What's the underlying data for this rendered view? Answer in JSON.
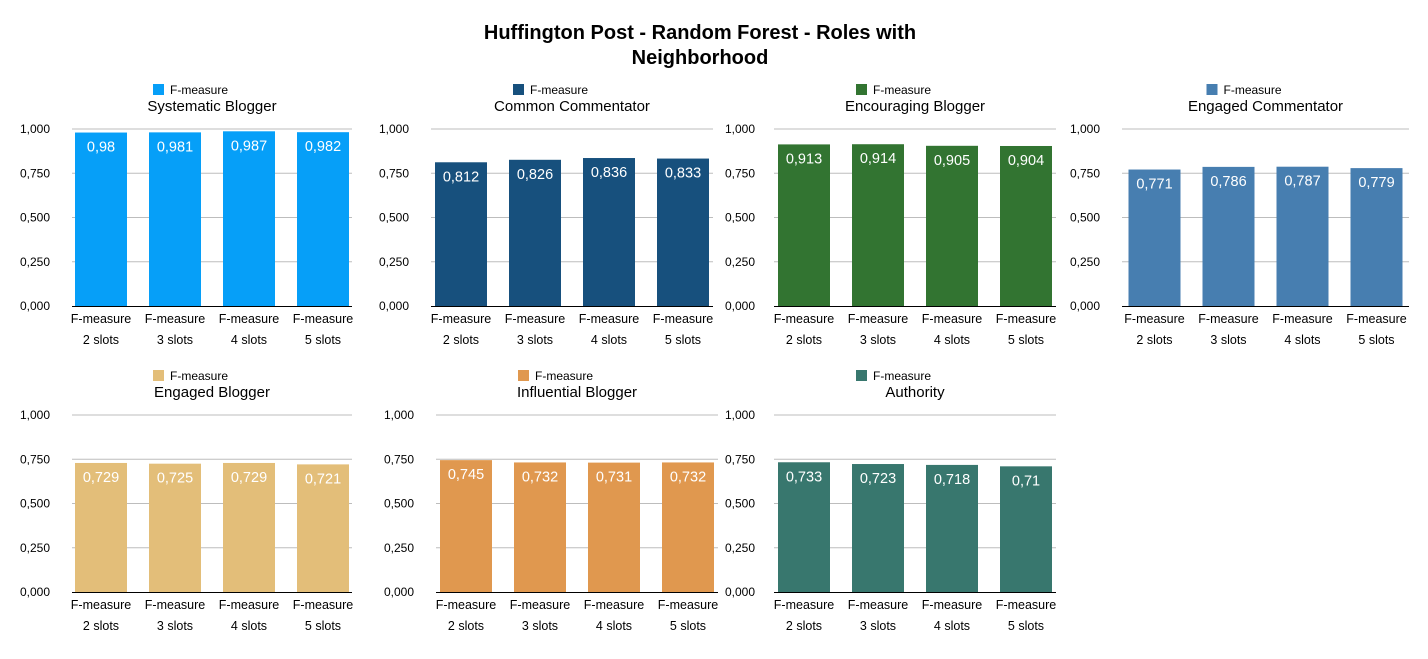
{
  "figure_title_lines": [
    "Huffington Post - Random Forest - Roles with",
    "Neighborhood"
  ],
  "chart_data": [
    {
      "type": "bar",
      "title": "Systematic Blogger",
      "legend": "F-measure",
      "color": "#069ff8",
      "categories": [
        [
          "F-measure",
          "2 slots"
        ],
        [
          "F-measure",
          "3 slots"
        ],
        [
          "F-measure",
          "4 slots"
        ],
        [
          "F-measure",
          "5 slots"
        ]
      ],
      "values": [
        0.98,
        0.981,
        0.987,
        0.982
      ],
      "value_labels": [
        "0,98",
        "0,981",
        "0,987",
        "0,982"
      ],
      "ylim": [
        0,
        1
      ],
      "yticks": [
        "0,000",
        "0,250",
        "0,500",
        "0,750",
        "1,000"
      ],
      "xlabel": "",
      "ylabel": ""
    },
    {
      "type": "bar",
      "title": "Common Commentator",
      "legend": "F-measure",
      "color": "#17507d",
      "categories": [
        [
          "F-measure",
          "2 slots"
        ],
        [
          "F-measure",
          "3 slots"
        ],
        [
          "F-measure",
          "4 slots"
        ],
        [
          "F-measure",
          "5 slots"
        ]
      ],
      "values": [
        0.812,
        0.826,
        0.836,
        0.833
      ],
      "value_labels": [
        "0,812",
        "0,826",
        "0,836",
        "0,833"
      ],
      "ylim": [
        0,
        1
      ],
      "yticks": [
        "0,000",
        "0,250",
        "0,500",
        "0,750",
        "1,000"
      ],
      "xlabel": "",
      "ylabel": ""
    },
    {
      "type": "bar",
      "title": "Encouraging Blogger",
      "legend": "F-measure",
      "color": "#327431",
      "categories": [
        [
          "F-measure",
          "2 slots"
        ],
        [
          "F-measure",
          "3 slots"
        ],
        [
          "F-measure",
          "4 slots"
        ],
        [
          "F-measure",
          "5 slots"
        ]
      ],
      "values": [
        0.913,
        0.914,
        0.905,
        0.904
      ],
      "value_labels": [
        "0,913",
        "0,914",
        "0,905",
        "0,904"
      ],
      "ylim": [
        0,
        1
      ],
      "yticks": [
        "0,000",
        "0,250",
        "0,500",
        "0,750",
        "1,000"
      ],
      "xlabel": "",
      "ylabel": ""
    },
    {
      "type": "bar",
      "title": "Engaged Commentator",
      "legend": "F-measure",
      "color": "#477eb0",
      "categories": [
        [
          "F-measure",
          "2 slots"
        ],
        [
          "F-measure",
          "3 slots"
        ],
        [
          "F-measure",
          "4 slots"
        ],
        [
          "F-measure",
          "5 slots"
        ]
      ],
      "values": [
        0.771,
        0.786,
        0.787,
        0.779
      ],
      "value_labels": [
        "0,771",
        "0,786",
        "0,787",
        "0,779"
      ],
      "ylim": [
        0,
        1
      ],
      "yticks": [
        "0,000",
        "0,250",
        "0,500",
        "0,750",
        "1,000"
      ],
      "xlabel": "",
      "ylabel": ""
    },
    {
      "type": "bar",
      "title": "Engaged Blogger",
      "legend": "F-measure",
      "color": "#e3be79",
      "categories": [
        [
          "F-measure",
          "2 slots"
        ],
        [
          "F-measure",
          "3 slots"
        ],
        [
          "F-measure",
          "4 slots"
        ],
        [
          "F-measure",
          "5 slots"
        ]
      ],
      "values": [
        0.729,
        0.725,
        0.729,
        0.721
      ],
      "value_labels": [
        "0,729",
        "0,725",
        "0,729",
        "0,721"
      ],
      "ylim": [
        0,
        1
      ],
      "yticks": [
        "0,000",
        "0,250",
        "0,500",
        "0,750",
        "1,000"
      ],
      "xlabel": "",
      "ylabel": ""
    },
    {
      "type": "bar",
      "title": "Influential Blogger",
      "legend": "F-measure",
      "color": "#e0984f",
      "categories": [
        [
          "F-measure",
          "2 slots"
        ],
        [
          "F-measure",
          "3 slots"
        ],
        [
          "F-measure",
          "4 slots"
        ],
        [
          "F-measure",
          "5 slots"
        ]
      ],
      "values": [
        0.745,
        0.732,
        0.731,
        0.732
      ],
      "value_labels": [
        "0,745",
        "0,732",
        "0,731",
        "0,732"
      ],
      "ylim": [
        0,
        1
      ],
      "yticks": [
        "0,000",
        "0,250",
        "0,500",
        "0,750",
        "1,000"
      ],
      "xlabel": "",
      "ylabel": ""
    },
    {
      "type": "bar",
      "title": "Authority",
      "legend": "F-measure",
      "color": "#38776e",
      "categories": [
        [
          "F-measure",
          "2 slots"
        ],
        [
          "F-measure",
          "3 slots"
        ],
        [
          "F-measure",
          "4 slots"
        ],
        [
          "F-measure",
          "5 slots"
        ]
      ],
      "values": [
        0.733,
        0.723,
        0.718,
        0.71
      ],
      "value_labels": [
        "0,733",
        "0,723",
        "0,718",
        "0,71"
      ],
      "ylim": [
        0,
        1
      ],
      "yticks": [
        "0,000",
        "0,250",
        "0,500",
        "0,750",
        "1,000"
      ],
      "xlabel": "",
      "ylabel": ""
    }
  ]
}
